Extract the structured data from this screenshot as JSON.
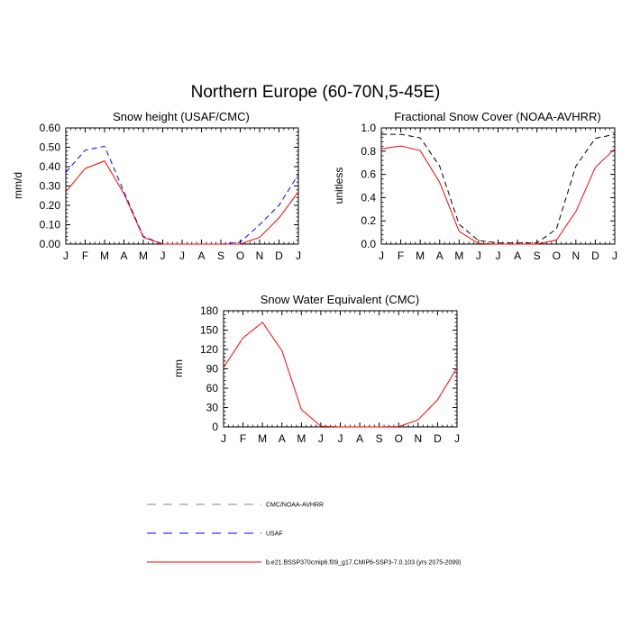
{
  "title": "Northern Europe (60-70N,5-45E)",
  "months": [
    "J",
    "F",
    "M",
    "A",
    "M",
    "J",
    "J",
    "A",
    "S",
    "O",
    "N",
    "D",
    "J"
  ],
  "colors": {
    "model": "#ff0000",
    "usaf": "#0000ff",
    "obs": "#000000",
    "legend_dash": "#888888"
  },
  "chart_data": [
    {
      "id": "snow-height",
      "type": "line",
      "title": "Snow height (USAF/CMC)",
      "ylabel": "mm/d",
      "ylim": [
        0,
        0.6
      ],
      "yticks": [
        0,
        0.1,
        0.2,
        0.3,
        0.4,
        0.5,
        0.6
      ],
      "ytick_labels": [
        "0.00",
        "0.10",
        "0.20",
        "0.30",
        "0.40",
        "0.50",
        "0.60"
      ],
      "series": [
        {
          "name": "CMC/NOAA-AVHRR",
          "style": "obs",
          "values": [
            0,
            0,
            0,
            0,
            0,
            0,
            0,
            0,
            0,
            0,
            0,
            0,
            0
          ]
        },
        {
          "name": "USAF",
          "style": "usaf",
          "values": [
            0.37,
            0.485,
            0.505,
            0.27,
            0.04,
            0.0,
            0.0,
            0.0,
            0.0,
            0.01,
            0.1,
            0.2,
            0.36
          ]
        },
        {
          "name": "model",
          "style": "model",
          "values": [
            0.27,
            0.39,
            0.43,
            0.26,
            0.035,
            0.0,
            0.0,
            0.0,
            0.0,
            0.0,
            0.035,
            0.135,
            0.27
          ]
        }
      ]
    },
    {
      "id": "snow-cover",
      "type": "line",
      "title": "Fractional Snow Cover (NOAA-AVHRR)",
      "ylabel": "unitless",
      "ylim": [
        0,
        1.0
      ],
      "yticks": [
        0,
        0.2,
        0.4,
        0.6,
        0.8,
        1.0
      ],
      "ytick_labels": [
        "0.0",
        "0.2",
        "0.4",
        "0.6",
        "0.8",
        "1.0"
      ],
      "series": [
        {
          "name": "CMC/NOAA-AVHRR",
          "style": "obs",
          "values": [
            0.945,
            0.945,
            0.915,
            0.67,
            0.17,
            0.03,
            0.01,
            0.01,
            0.01,
            0.13,
            0.67,
            0.91,
            0.945
          ]
        },
        {
          "name": "model",
          "style": "model",
          "values": [
            0.82,
            0.845,
            0.805,
            0.53,
            0.11,
            0.005,
            0.0,
            0.0,
            0.0,
            0.035,
            0.28,
            0.66,
            0.82
          ]
        }
      ]
    },
    {
      "id": "swe",
      "type": "line",
      "title": "Snow Water Equivalent (CMC)",
      "ylabel": "mm",
      "ylim": [
        0,
        180
      ],
      "yticks": [
        0,
        30,
        60,
        90,
        120,
        150,
        180
      ],
      "ytick_labels": [
        "0",
        "30",
        "60",
        "90",
        "120",
        "150",
        "180"
      ],
      "series": [
        {
          "name": "CMC/NOAA-AVHRR",
          "style": "obs",
          "values": [
            0,
            0,
            0,
            0,
            0,
            0,
            0,
            0,
            0,
            0,
            0,
            0,
            0
          ]
        },
        {
          "name": "model",
          "style": "model",
          "values": [
            92,
            138,
            162,
            118,
            27,
            1,
            0,
            0,
            0,
            0.5,
            11,
            42,
            92
          ]
        }
      ]
    }
  ],
  "legend": [
    {
      "label": "CMC/NOAA-AVHRR",
      "style": "obs"
    },
    {
      "label": "USAF",
      "style": "usaf"
    },
    {
      "label": "b.e21.BSSP370cmip6.f09_g17.CMIP6-SSP3-7.0.103 (yrs 2075-2099)",
      "style": "model"
    }
  ]
}
